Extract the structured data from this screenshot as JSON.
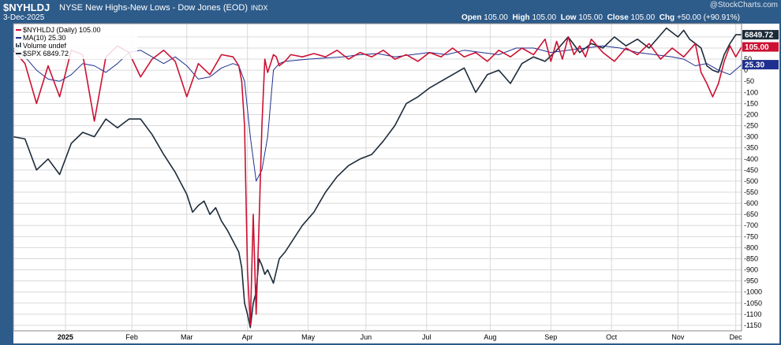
{
  "header": {
    "symbol": "$NYHLDJ",
    "subtitle": "NYSE New Highs-New Lows - Dow Jones (EOD)",
    "exchange": "INDX",
    "date": "3-Dec-2025",
    "open_label": "Open",
    "open": "105.00",
    "high_label": "High",
    "high": "105.00",
    "low_label": "Low",
    "low": "105.00",
    "close_label": "Close",
    "close": "105.00",
    "chg_label": "Chg",
    "chg": "+50.00 (+90.91%)",
    "watermark": "@StockCharts.com"
  },
  "colors": {
    "frame": "#2d5b8a",
    "nyhldj": "#cc1133",
    "ma": "#1f2f8f",
    "spx": "#1c2b3a",
    "grid": "#d9d9d9"
  },
  "chart_data": {
    "type": "line",
    "ylim": [
      -1175,
      210
    ],
    "yticks": [
      150,
      100,
      50,
      0,
      -50,
      -100,
      -150,
      -200,
      -250,
      -300,
      -350,
      -400,
      -450,
      -500,
      -550,
      -600,
      -650,
      -700,
      -750,
      -800,
      -850,
      -900,
      -950,
      -1000,
      -1050,
      -1100,
      -1150
    ],
    "xticks": [
      {
        "label": "2025",
        "t": 18
      },
      {
        "label": "Feb",
        "t": 41
      },
      {
        "label": "Mar",
        "t": 60
      },
      {
        "label": "Apr",
        "t": 81
      },
      {
        "label": "May",
        "t": 102
      },
      {
        "label": "Jun",
        "t": 122
      },
      {
        "label": "Jul",
        "t": 143
      },
      {
        "label": "Aug",
        "t": 165
      },
      {
        "label": "Sep",
        "t": 186
      },
      {
        "label": "Oct",
        "t": 207
      },
      {
        "label": "Nov",
        "t": 230
      },
      {
        "label": "Dec",
        "t": 250
      }
    ],
    "legend": [
      {
        "name": "$NYHLDJ (Daily) 105.00",
        "color": "#cc1133",
        "marker": "line"
      },
      {
        "name": "MA(10) 25.30",
        "color": "#1f2f8f",
        "marker": "line"
      },
      {
        "name": "Volume undef",
        "color": "#1c2b3a",
        "marker": "bars"
      },
      {
        "name": "$SPX 6849.72",
        "color": "#1c2b3a",
        "marker": "line"
      }
    ],
    "right_labels": [
      {
        "text": "6849.72",
        "y": 160,
        "bg": "#1c2b3a",
        "fg": "#ffffff"
      },
      {
        "text": "105.00",
        "y": 105,
        "bg": "#cc1133",
        "fg": "#ffffff"
      },
      {
        "text": "25.30",
        "y": 25,
        "bg": "#1f2f8f",
        "fg": "#ffffff"
      }
    ],
    "series": [
      {
        "name": "$NYHLDJ",
        "color": "#cc1133",
        "x": [
          0,
          4,
          8,
          12,
          16,
          20,
          24,
          28,
          32,
          36,
          40,
          44,
          48,
          52,
          56,
          60,
          64,
          68,
          72,
          76,
          78,
          79,
          80,
          81,
          82,
          83,
          84,
          85,
          86,
          87,
          88,
          89,
          90,
          91,
          92,
          94,
          96,
          100,
          104,
          108,
          112,
          116,
          120,
          124,
          128,
          132,
          136,
          140,
          144,
          148,
          152,
          156,
          160,
          164,
          168,
          172,
          176,
          180,
          184,
          186,
          188,
          190,
          192,
          194,
          196,
          198,
          200,
          204,
          208,
          212,
          216,
          220,
          224,
          228,
          232,
          236,
          238,
          240,
          242,
          244,
          246,
          248,
          250,
          252
        ],
        "values": [
          90,
          30,
          -150,
          20,
          -120,
          90,
          70,
          -230,
          60,
          110,
          80,
          -30,
          50,
          90,
          40,
          -120,
          30,
          -20,
          70,
          60,
          20,
          -50,
          -250,
          -900,
          -1150,
          -650,
          -1100,
          -700,
          -250,
          50,
          -10,
          30,
          70,
          60,
          20,
          40,
          70,
          60,
          75,
          60,
          90,
          50,
          80,
          60,
          90,
          50,
          70,
          40,
          80,
          60,
          100,
          60,
          80,
          40,
          90,
          60,
          100,
          70,
          140,
          40,
          130,
          50,
          150,
          70,
          110,
          60,
          140,
          80,
          40,
          100,
          70,
          120,
          50,
          100,
          60,
          120,
          -10,
          -60,
          -120,
          -60,
          40,
          110,
          60,
          105
        ]
      },
      {
        "name": "MA(10)",
        "color": "#1f2f8f",
        "x": [
          0,
          4,
          8,
          12,
          16,
          20,
          24,
          28,
          32,
          36,
          40,
          44,
          48,
          52,
          56,
          60,
          64,
          68,
          72,
          76,
          78,
          80,
          82,
          84,
          86,
          88,
          90,
          92,
          94,
          98,
          102,
          108,
          114,
          120,
          126,
          132,
          138,
          144,
          150,
          156,
          162,
          168,
          174,
          180,
          186,
          192,
          198,
          204,
          210,
          216,
          222,
          228,
          232,
          236,
          240,
          244,
          248,
          252
        ],
        "values": [
          100,
          60,
          0,
          -40,
          -50,
          -20,
          30,
          20,
          -10,
          30,
          80,
          90,
          60,
          30,
          60,
          20,
          -40,
          -30,
          10,
          30,
          20,
          -50,
          -300,
          -500,
          -450,
          -300,
          0,
          30,
          40,
          45,
          50,
          55,
          60,
          70,
          75,
          60,
          70,
          80,
          70,
          90,
          80,
          70,
          100,
          100,
          80,
          90,
          100,
          110,
          100,
          80,
          70,
          60,
          50,
          20,
          30,
          0,
          -20,
          25
        ]
      },
      {
        "name": "$SPX",
        "color": "#1c2b3a",
        "x": [
          0,
          4,
          8,
          12,
          16,
          20,
          24,
          28,
          32,
          36,
          40,
          44,
          48,
          52,
          56,
          60,
          62,
          64,
          66,
          68,
          70,
          72,
          74,
          76,
          78,
          79,
          80,
          81,
          82,
          83,
          84,
          85,
          86,
          87,
          88,
          90,
          92,
          94,
          96,
          98,
          100,
          104,
          108,
          112,
          116,
          120,
          124,
          128,
          132,
          136,
          140,
          144,
          148,
          152,
          156,
          160,
          164,
          168,
          172,
          176,
          180,
          184,
          188,
          192,
          196,
          200,
          204,
          208,
          212,
          216,
          220,
          224,
          226,
          228,
          230,
          232,
          234,
          236,
          238,
          240,
          242,
          244,
          246,
          248,
          250,
          252
        ],
        "values": [
          -300,
          -310,
          -450,
          -400,
          -470,
          -330,
          -280,
          -300,
          -220,
          -260,
          -220,
          -220,
          -290,
          -380,
          -460,
          -560,
          -640,
          -610,
          -590,
          -650,
          -620,
          -680,
          -720,
          -770,
          -820,
          -890,
          -1050,
          -1100,
          -1160,
          -1050,
          -1000,
          -850,
          -880,
          -920,
          -900,
          -960,
          -850,
          -820,
          -780,
          -740,
          -700,
          -640,
          -550,
          -480,
          -430,
          -400,
          -380,
          -320,
          -250,
          -150,
          -120,
          -80,
          -50,
          -20,
          10,
          -100,
          -20,
          0,
          -60,
          30,
          60,
          40,
          90,
          150,
          80,
          120,
          100,
          150,
          110,
          140,
          100,
          160,
          190,
          170,
          150,
          180,
          140,
          120,
          100,
          20,
          0,
          -10,
          70,
          120,
          160,
          160
        ]
      }
    ]
  }
}
